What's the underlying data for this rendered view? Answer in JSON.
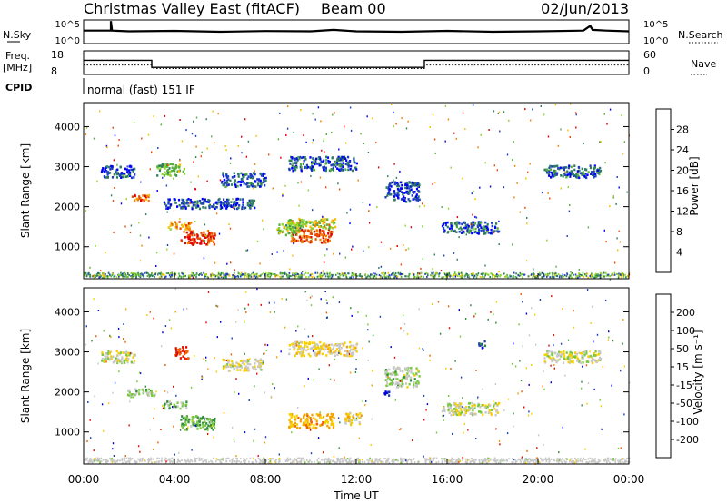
{
  "header": {
    "title": "Christmas Valley East (fitACF)",
    "beam": "Beam 00",
    "date": "02/Jun/2013"
  },
  "colors": {
    "power_scale": [
      "#0000ff",
      "#1f3fc0",
      "#2e7f5a",
      "#55b03a",
      "#8ed42a",
      "#f6c000",
      "#f08400",
      "#e84a00",
      "#e00000"
    ],
    "velocity_scale": [
      "#0000dd",
      "#1f3fb0",
      "#2f8c3a",
      "#78c83c",
      "#c8c8c8",
      "#f7cf00",
      "#f3a000",
      "#f06000",
      "#e01000"
    ]
  },
  "chart_data": [
    {
      "type": "line",
      "panel": "noise",
      "left_label": "N.Sky",
      "right_label": "N.Search",
      "left_ticks": [
        "10^5",
        "10^0"
      ],
      "right_ticks": [
        "10^5",
        "10^0"
      ],
      "xlim": [
        0,
        24
      ],
      "series": [
        {
          "x": [
            0,
            1.2,
            1.2,
            1.25,
            2,
            4,
            6,
            8,
            10,
            11,
            12,
            14,
            16,
            18,
            20,
            22,
            22.3,
            22.4,
            23,
            24
          ],
          "values": [
            0.55,
            0.55,
            0.95,
            0.55,
            0.52,
            0.54,
            0.5,
            0.53,
            0.52,
            0.58,
            0.52,
            0.5,
            0.54,
            0.5,
            0.52,
            0.55,
            0.75,
            0.58,
            0.55,
            0.52
          ]
        }
      ]
    },
    {
      "type": "line",
      "panel": "frequency",
      "left_label": "Freq.\n[MHz]",
      "right_label": "Nave",
      "left_ticks": [
        "18",
        "8"
      ],
      "right_ticks": [
        "60",
        "0"
      ],
      "xlim": [
        0,
        24
      ],
      "ylim": [
        8,
        18
      ],
      "series": [
        {
          "x": [
            0,
            3,
            3,
            15,
            15,
            24
          ],
          "values": [
            14,
            14,
            11,
            11,
            14,
            14
          ]
        },
        {
          "x": [
            0,
            3,
            3,
            15,
            15,
            24
          ],
          "values": [
            12,
            12,
            10.5,
            10.5,
            12,
            12
          ]
        }
      ]
    },
    {
      "type": "text",
      "panel": "cpid",
      "label": "CPID",
      "text": "normal (fast) 151 IF"
    },
    {
      "type": "heatmap",
      "panel": "power",
      "ylabel": "Slant Range [km]",
      "yticks": [
        1000,
        2000,
        3000,
        4000
      ],
      "ylim": [
        200,
        4600
      ],
      "xlim": [
        0,
        24
      ],
      "colorbar_label": "Power [dB]",
      "colorbar_ticks": [
        28,
        24,
        20,
        16,
        12,
        8,
        4
      ],
      "colorbar_range": [
        0,
        30
      ],
      "regions": [
        {
          "t": 5.0,
          "r": 1250,
          "dt": 1.5,
          "dr": 350,
          "v": 26
        },
        {
          "t": 10.0,
          "r": 1300,
          "dt": 1.8,
          "dr": 350,
          "v": 25
        },
        {
          "t": 4.2,
          "r": 1550,
          "dt": 1.0,
          "dr": 200,
          "v": 20
        },
        {
          "t": 10.0,
          "r": 1600,
          "dt": 2.2,
          "dr": 250,
          "v": 16
        },
        {
          "t": 9.0,
          "r": 1450,
          "dt": 1.0,
          "dr": 300,
          "v": 14
        },
        {
          "t": 1.5,
          "r": 2900,
          "dt": 1.5,
          "dr": 300,
          "v": 5
        },
        {
          "t": 3.8,
          "r": 2950,
          "dt": 1.2,
          "dr": 300,
          "v": 12
        },
        {
          "t": 7.0,
          "r": 2700,
          "dt": 2.0,
          "dr": 350,
          "v": 6
        },
        {
          "t": 10.5,
          "r": 3100,
          "dt": 3.0,
          "dr": 350,
          "v": 6
        },
        {
          "t": 14.0,
          "r": 2400,
          "dt": 1.5,
          "dr": 500,
          "v": 5
        },
        {
          "t": 17.0,
          "r": 1500,
          "dt": 2.5,
          "dr": 300,
          "v": 6
        },
        {
          "t": 21.5,
          "r": 2900,
          "dt": 2.5,
          "dr": 300,
          "v": 6
        },
        {
          "t": 5.5,
          "r": 2100,
          "dt": 4.0,
          "dr": 250,
          "v": 5
        },
        {
          "t": 2.5,
          "r": 2250,
          "dt": 0.8,
          "dr": 150,
          "v": 24
        }
      ]
    },
    {
      "type": "heatmap",
      "panel": "velocity",
      "ylabel": "Slant Range [km]",
      "yticks": [
        1000,
        2000,
        3000,
        4000
      ],
      "ylim": [
        200,
        4600
      ],
      "xlim": [
        0,
        24
      ],
      "xlabel": "Time UT",
      "xticks": [
        "00:00",
        "04:00",
        "08:00",
        "12:00",
        "16:00",
        "20:00",
        "00:00"
      ],
      "colorbar_label": "Velocity [m s⁻¹]",
      "colorbar_ticks": [
        200,
        100,
        50,
        15,
        -15,
        -50,
        -100,
        -200
      ],
      "colorbar_range": [
        -250,
        250
      ],
      "regions": [
        {
          "t": 5.0,
          "r": 1250,
          "dt": 1.5,
          "dr": 350,
          "v": -80
        },
        {
          "t": 10.0,
          "r": 1300,
          "dt": 2.0,
          "dr": 350,
          "v": 100
        },
        {
          "t": 11.8,
          "r": 1350,
          "dt": 0.8,
          "dr": 300,
          "v": 60
        },
        {
          "t": 4.0,
          "r": 1700,
          "dt": 1.0,
          "dr": 200,
          "v": -60
        },
        {
          "t": 2.5,
          "r": 2000,
          "dt": 1.2,
          "dr": 200,
          "v": -40
        },
        {
          "t": 4.3,
          "r": 3000,
          "dt": 0.6,
          "dr": 300,
          "v": 200
        },
        {
          "t": 1.5,
          "r": 2900,
          "dt": 1.5,
          "dr": 300,
          "v": 0
        },
        {
          "t": 7.0,
          "r": 2700,
          "dt": 1.8,
          "dr": 300,
          "v": 10
        },
        {
          "t": 10.5,
          "r": 3100,
          "dt": 3.0,
          "dr": 350,
          "v": 40
        },
        {
          "t": 14.0,
          "r": 2400,
          "dt": 1.5,
          "dr": 500,
          "v": -30
        },
        {
          "t": 17.0,
          "r": 1600,
          "dt": 2.5,
          "dr": 300,
          "v": 0
        },
        {
          "t": 21.5,
          "r": 2900,
          "dt": 2.5,
          "dr": 300,
          "v": 0
        },
        {
          "t": 13.3,
          "r": 2000,
          "dt": 0.3,
          "dr": 150,
          "v": -200
        },
        {
          "t": 17.5,
          "r": 3200,
          "dt": 0.3,
          "dr": 200,
          "v": -150
        }
      ]
    }
  ]
}
